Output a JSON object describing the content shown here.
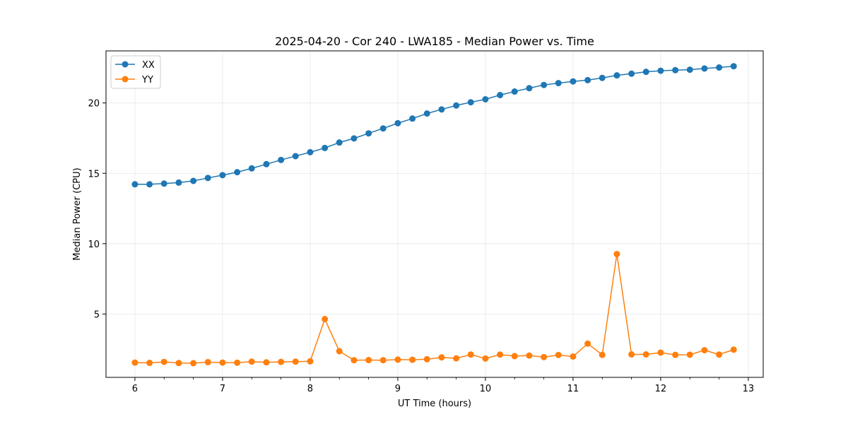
{
  "chart_data": {
    "type": "line",
    "title": "2025-04-20 - Cor 240 - LWA185 - Median Power vs. Time",
    "xlabel": "UT Time (hours)",
    "ylabel": "Median Power (CPU)",
    "xlim": [
      5.67,
      13.17
    ],
    "ylim": [
      0.5,
      23.7
    ],
    "x_ticks": [
      6,
      7,
      8,
      9,
      10,
      11,
      12,
      13
    ],
    "y_ticks": [
      5,
      10,
      15,
      20
    ],
    "grid": true,
    "legend_position": "upper-left",
    "x": [
      6.0,
      6.167,
      6.333,
      6.5,
      6.667,
      6.833,
      7.0,
      7.167,
      7.333,
      7.5,
      7.667,
      7.833,
      8.0,
      8.167,
      8.333,
      8.5,
      8.667,
      8.833,
      9.0,
      9.167,
      9.333,
      9.5,
      9.667,
      9.833,
      10.0,
      10.167,
      10.333,
      10.5,
      10.667,
      10.833,
      11.0,
      11.167,
      11.333,
      11.5,
      11.667,
      11.833,
      12.0,
      12.167,
      12.333,
      12.5,
      12.667,
      12.833
    ],
    "series": [
      {
        "name": "XX",
        "color": "#1f77b4",
        "values": [
          14.22,
          14.22,
          14.27,
          14.34,
          14.46,
          14.67,
          14.87,
          15.08,
          15.35,
          15.65,
          15.95,
          16.22,
          16.5,
          16.8,
          17.19,
          17.48,
          17.84,
          18.19,
          18.56,
          18.89,
          19.25,
          19.54,
          19.82,
          20.05,
          20.26,
          20.56,
          20.81,
          21.05,
          21.28,
          21.41,
          21.53,
          21.62,
          21.78,
          21.96,
          22.08,
          22.21,
          22.29,
          22.33,
          22.36,
          22.45,
          22.52,
          22.61
        ]
      },
      {
        "name": "YY",
        "color": "#ff7f0e",
        "values": [
          1.55,
          1.53,
          1.6,
          1.52,
          1.51,
          1.58,
          1.55,
          1.54,
          1.62,
          1.57,
          1.6,
          1.62,
          1.64,
          4.64,
          2.36,
          1.72,
          1.73,
          1.72,
          1.76,
          1.75,
          1.79,
          1.92,
          1.85,
          2.12,
          1.84,
          2.12,
          2.01,
          2.05,
          1.94,
          2.09,
          1.98,
          2.9,
          2.1,
          9.26,
          2.13,
          2.13,
          2.26,
          2.1,
          2.11,
          2.43,
          2.12,
          2.47
        ]
      }
    ]
  }
}
